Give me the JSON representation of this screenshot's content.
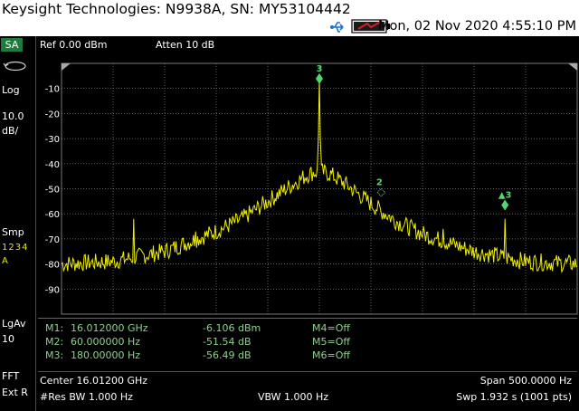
{
  "header": {
    "title": "Keysight Technologies: N9938A, SN: MY53104442",
    "datetime": "Mon, 02 Nov 2020 4:55:10 PM"
  },
  "icons": {
    "usb": "usb-icon",
    "battery": "battery-icon",
    "sweep": "sweep-mode-icon"
  },
  "sidebar": {
    "mode": "SA",
    "scale_type": "Log",
    "scale_value": "10.0",
    "scale_unit": "dB/",
    "detector": "Smp",
    "trace_nums": "1234",
    "trace_state": "A",
    "average_type": "LgAv",
    "average_count": "10",
    "fft": "FFT",
    "trigger": "Ext R"
  },
  "display": {
    "ref_level": "Ref 0.00 dBm",
    "attenuation": "Atten 10 dB"
  },
  "chart_data": {
    "type": "line",
    "xlabel": "",
    "ylabel": "",
    "x_unit": "Hz offset from center",
    "xlim": [
      -250,
      250
    ],
    "ylim": [
      -100,
      0
    ],
    "y_tick_labels": [
      "-10",
      "-20",
      "-30",
      "-40",
      "-50",
      "-60",
      "-70",
      "-80",
      "-90"
    ],
    "y_ticks": [
      -10,
      -20,
      -30,
      -40,
      -50,
      -60,
      -70,
      -80,
      -90
    ],
    "grid": true,
    "trace_color": "#f0f000",
    "noise_floor_db": -80,
    "spectrum_envelope": {
      "x": [
        -250,
        -200,
        -150,
        -100,
        -75,
        -50,
        -25,
        -10,
        0,
        10,
        25,
        50,
        75,
        100,
        150,
        200,
        250
      ],
      "y": [
        -80,
        -79,
        -75,
        -67,
        -62,
        -55,
        -48,
        -44,
        -43,
        -44,
        -48,
        -56,
        -63,
        -68,
        -75,
        -79,
        -80
      ]
    },
    "spurs": [
      {
        "x": -180,
        "y": -62
      },
      {
        "x": -120,
        "y": -67
      },
      {
        "x": 60,
        "y": -60
      },
      {
        "x": 120,
        "y": -66
      },
      {
        "x": 180,
        "y": -62
      }
    ],
    "carrier": {
      "x": 0,
      "y": -6.1
    },
    "markers": [
      {
        "label": "3",
        "x": 0,
        "y": -6.1,
        "type": "normal"
      },
      {
        "label": "2",
        "x": 60,
        "y": -51.5,
        "type": "delta-ref"
      },
      {
        "label": "▲3",
        "x": 180,
        "y": -56.5,
        "type": "delta"
      }
    ]
  },
  "marker_table": [
    {
      "name": "M1:",
      "freq": "16.012000 GHz",
      "value": "-6.106 dBm",
      "other": "M4=Off"
    },
    {
      "name": "M2:",
      "freq": "60.000000  Hz",
      "value": "-51.54 dB",
      "other": "M5=Off"
    },
    {
      "name": "M3:",
      "freq": "180.00000  Hz",
      "value": "-56.49 dB",
      "other": "M6=Off"
    }
  ],
  "bottom": {
    "center": "Center 16.01200 GHz",
    "span": "Span 500.0000  Hz",
    "rbw": "#Res BW 1.000  Hz",
    "vbw": "VBW 1.000  Hz",
    "sweep": "Swp 1.932  s (1001 pts)"
  }
}
